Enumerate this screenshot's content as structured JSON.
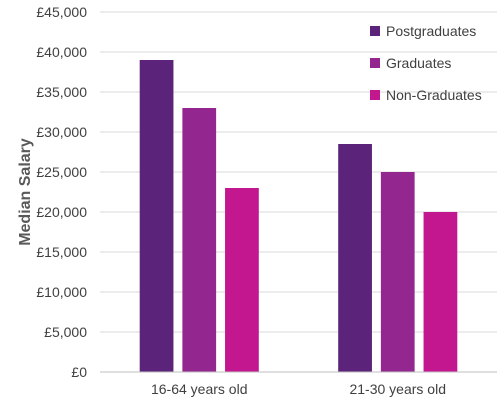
{
  "chart_data": {
    "type": "bar",
    "categories": [
      "16-64 years old",
      "21-30 years old"
    ],
    "series": [
      {
        "name": "Postgraduates",
        "values": [
          39000,
          28500
        ],
        "color": "#5b2379"
      },
      {
        "name": "Graduates",
        "values": [
          33000,
          25000
        ],
        "color": "#93278f"
      },
      {
        "name": "Non-Graduates",
        "values": [
          23000,
          20000
        ],
        "color": "#c2178f"
      }
    ],
    "ylabel": "Median Salary",
    "xlabel": "",
    "ylim": [
      0,
      45000
    ],
    "yticks": [
      0,
      5000,
      10000,
      15000,
      20000,
      25000,
      30000,
      35000,
      40000,
      45000
    ],
    "ytick_labels": [
      "£0",
      "£5,000",
      "£10,000",
      "£15,000",
      "£20,000",
      "£25,000",
      "£30,000",
      "£35,000",
      "£40,000",
      "£45,000"
    ],
    "grid": true,
    "legend_position": "top-right"
  }
}
